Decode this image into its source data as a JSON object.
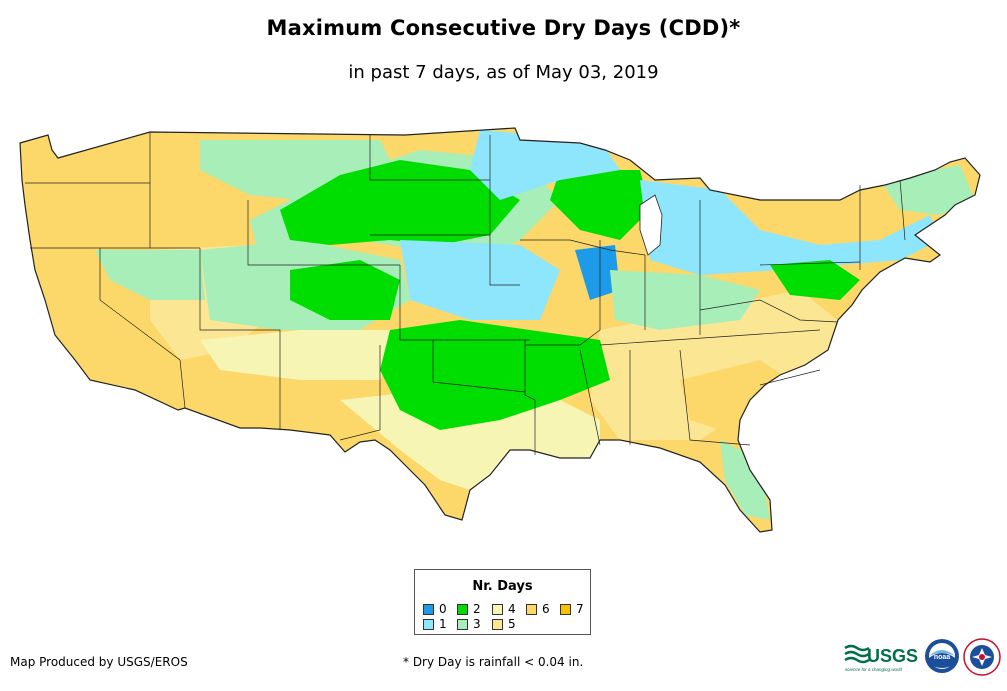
{
  "title": "Maximum Consecutive Dry Days (CDD)*",
  "subtitle": "in past 7 days, as of May 03, 2019",
  "legend": {
    "title": "Nr. Days",
    "items": [
      {
        "label": "0",
        "color": "#1e9be8"
      },
      {
        "label": "1",
        "color": "#8ee6fc"
      },
      {
        "label": "2",
        "color": "#00dd00"
      },
      {
        "label": "3",
        "color": "#a8eeb8"
      },
      {
        "label": "4",
        "color": "#f7f5b4"
      },
      {
        "label": "5",
        "color": "#fbe694"
      },
      {
        "label": "6",
        "color": "#fbd869"
      },
      {
        "label": "7",
        "color": "#f7c300"
      }
    ]
  },
  "footer": {
    "credit": "Map Produced by USGS/EROS",
    "note": "* Dry Day is rainfall < 0.04 in."
  },
  "logos": {
    "usgs_text": "USGS",
    "usgs_tagline": "science for a changing world",
    "noaa_text": "noaa"
  }
}
